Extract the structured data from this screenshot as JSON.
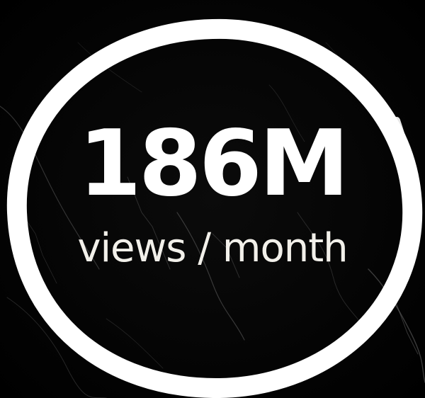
{
  "stat": {
    "value": "186M",
    "caption": "views / month"
  },
  "colors": {
    "background": "#000000",
    "ring": "#ffffff",
    "value_text": "#ffffff",
    "caption_text": "#f2f0ea"
  }
}
